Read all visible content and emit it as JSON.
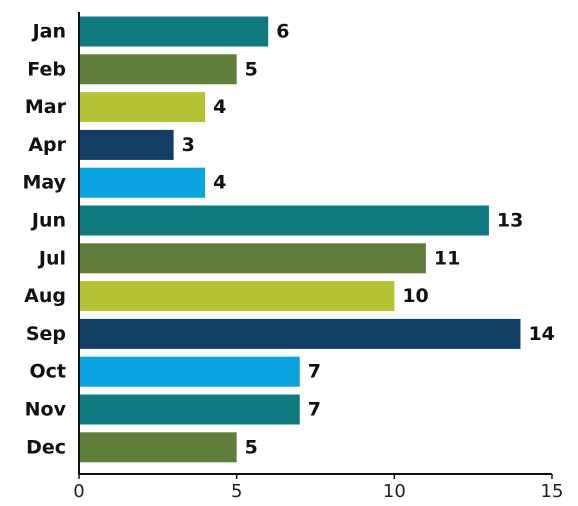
{
  "chart_data": {
    "type": "bar",
    "orientation": "horizontal",
    "categories": [
      "Jan",
      "Feb",
      "Mar",
      "Apr",
      "May",
      "Jun",
      "Jul",
      "Aug",
      "Sep",
      "Oct",
      "Nov",
      "Dec"
    ],
    "values": [
      6,
      5,
      4,
      3,
      4,
      13,
      11,
      10,
      14,
      7,
      7,
      5
    ],
    "bar_colors": [
      "#0e7a80",
      "#5f7d3b",
      "#b5c234",
      "#123e66",
      "#0aa3e0",
      "#0e7a80",
      "#5f7d3b",
      "#b5c234",
      "#123e66",
      "#0aa3e0",
      "#0e7a80",
      "#5f7d3b"
    ],
    "title": "",
    "xlabel": "",
    "ylabel": "",
    "xlim": [
      0,
      15
    ],
    "xticks": [
      0,
      5,
      10,
      15
    ],
    "xtick_labels": [
      "0",
      "5",
      "10",
      "15"
    ],
    "grid": false,
    "legend": "none",
    "data_labels": true
  }
}
